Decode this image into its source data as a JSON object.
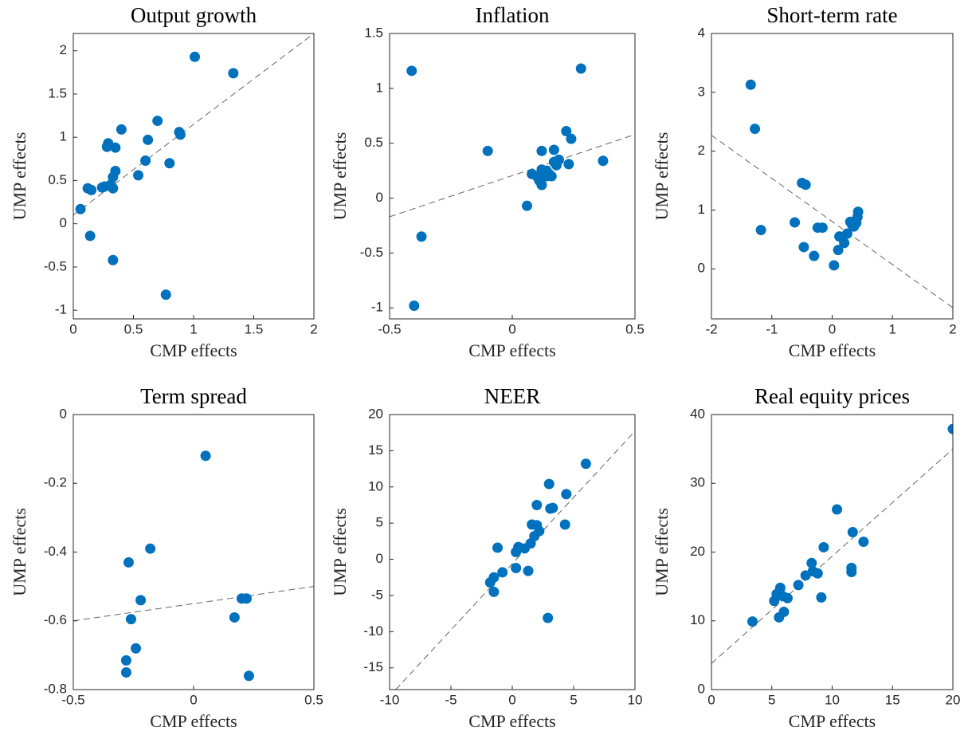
{
  "chart_data": [
    {
      "type": "scatter",
      "title": "Output growth",
      "xlabel": "CMP effects",
      "ylabel": "UMP effects",
      "color": "#0072bd",
      "x": [
        0.06,
        0.12,
        0.15,
        0.14,
        0.24,
        0.26,
        0.28,
        0.29,
        0.31,
        0.33,
        0.33,
        0.35,
        0.35,
        0.33,
        0.4,
        0.54,
        0.6,
        0.62,
        0.7,
        0.77,
        0.8,
        0.88,
        0.89,
        1.01,
        1.33
      ],
      "y": [
        0.17,
        0.41,
        0.39,
        -0.14,
        0.42,
        0.43,
        0.89,
        0.93,
        0.45,
        0.41,
        0.54,
        0.61,
        0.88,
        -0.42,
        1.09,
        0.56,
        0.73,
        0.97,
        1.19,
        -0.82,
        0.7,
        1.06,
        1.03,
        1.93,
        1.74
      ],
      "fit": {
        "x": [
          0,
          2
        ],
        "y": [
          0.1,
          2.2
        ]
      },
      "xlim": [
        0,
        2
      ],
      "xticks": [
        0,
        0.5,
        1,
        1.5,
        2
      ],
      "ylim": [
        -1.1,
        2.2
      ],
      "yticks": [
        -1,
        -0.5,
        0,
        0.5,
        1,
        1.5,
        2
      ]
    },
    {
      "type": "scatter",
      "title": "Inflation",
      "xlabel": "CMP effects",
      "ylabel": "UMP effects",
      "color": "#0072bd",
      "x": [
        -0.41,
        -0.4,
        -0.37,
        -0.1,
        0.06,
        0.08,
        0.1,
        0.11,
        0.12,
        0.12,
        0.12,
        0.14,
        0.14,
        0.15,
        0.16,
        0.17,
        0.17,
        0.18,
        0.19,
        0.22,
        0.23,
        0.24,
        0.28,
        0.37
      ],
      "y": [
        1.16,
        -0.98,
        -0.35,
        0.43,
        -0.07,
        0.22,
        0.2,
        0.16,
        0.26,
        0.12,
        0.43,
        0.2,
        0.25,
        0.22,
        0.2,
        0.33,
        0.44,
        0.3,
        0.35,
        0.61,
        0.31,
        0.54,
        1.18,
        0.34
      ],
      "fit": {
        "x": [
          -0.5,
          0.5
        ],
        "y": [
          -0.17,
          0.58
        ]
      },
      "xlim": [
        -0.5,
        0.5
      ],
      "xticks": [
        -0.5,
        0,
        0.5
      ],
      "ylim": [
        -1.1,
        1.5
      ],
      "yticks": [
        -1,
        -0.5,
        0,
        0.5,
        1,
        1.5
      ]
    },
    {
      "type": "scatter",
      "title": "Short-term rate",
      "xlabel": "CMP effects",
      "ylabel": "UMP effects",
      "color": "#0072bd",
      "x": [
        -1.35,
        -1.28,
        -1.18,
        -0.62,
        -0.5,
        -0.47,
        -0.44,
        -0.3,
        -0.24,
        -0.16,
        0.03,
        0.1,
        0.12,
        0.2,
        0.25,
        0.3,
        0.33,
        0.36,
        0.4,
        0.42,
        0.43
      ],
      "y": [
        3.13,
        2.38,
        0.66,
        0.79,
        1.46,
        0.37,
        1.43,
        0.22,
        0.7,
        0.7,
        0.06,
        0.32,
        0.55,
        0.44,
        0.6,
        0.8,
        0.75,
        0.72,
        0.78,
        0.88,
        0.97
      ],
      "fit": {
        "x": [
          -2,
          2
        ],
        "y": [
          2.27,
          -0.66
        ]
      },
      "xlim": [
        -2,
        2
      ],
      "xticks": [
        -2,
        -1,
        0,
        1,
        2
      ],
      "ylim": [
        -0.85,
        4
      ],
      "yticks": [
        0,
        1,
        2,
        3,
        4
      ]
    },
    {
      "type": "scatter",
      "title": "Term spread",
      "xlabel": "CMP effects",
      "ylabel": "UMP effects",
      "color": "#0072bd",
      "x": [
        -0.28,
        -0.28,
        -0.27,
        -0.26,
        -0.24,
        -0.22,
        -0.18,
        0.05,
        0.17,
        0.2,
        0.22,
        0.23
      ],
      "y": [
        -0.715,
        -0.75,
        -0.43,
        -0.595,
        -0.68,
        -0.54,
        -0.39,
        -0.12,
        -0.59,
        -0.535,
        -0.535,
        -0.76
      ],
      "fit": {
        "x": [
          -0.5,
          0.5
        ],
        "y": [
          -0.6,
          -0.5
        ]
      },
      "xlim": [
        -0.5,
        0.5
      ],
      "xticks": [
        -0.5,
        0,
        0.5
      ],
      "ylim": [
        -0.8,
        0
      ],
      "yticks": [
        -0.8,
        -0.6,
        -0.4,
        -0.2,
        0
      ]
    },
    {
      "type": "scatter",
      "title": "NEER",
      "xlabel": "CMP effects",
      "ylabel": "UMP effects",
      "color": "#0072bd",
      "x": [
        -1.8,
        -1.5,
        -1.5,
        -1.2,
        -0.8,
        0.3,
        0.3,
        0.5,
        1,
        1.3,
        1.5,
        1.6,
        1.8,
        2,
        2,
        2.2,
        2.9,
        3,
        3.1,
        3.3,
        4.3,
        4.4,
        6
      ],
      "y": [
        -3.2,
        -2.5,
        -4.5,
        1.6,
        -1.8,
        -1.2,
        1,
        1.7,
        1.5,
        -1.6,
        2.2,
        4.8,
        3.2,
        4.7,
        7.5,
        3.9,
        -8.1,
        10.4,
        7,
        7.1,
        4.8,
        9,
        13.2
      ],
      "fit": {
        "x": [
          -9.5,
          10
        ],
        "y": [
          -18,
          17.7
        ]
      },
      "xlim": [
        -10,
        10
      ],
      "xticks": [
        -10,
        -5,
        0,
        5,
        10
      ],
      "ylim": [
        -18,
        20
      ],
      "yticks": [
        -15,
        -10,
        -5,
        0,
        5,
        10,
        15,
        20
      ]
    },
    {
      "type": "scatter",
      "title": "Real equity prices",
      "xlabel": "CMP effects",
      "ylabel": "UMP effects",
      "color": "#0072bd",
      "x": [
        3.4,
        5.2,
        5.4,
        5.6,
        5.7,
        5.9,
        6,
        6.3,
        7.2,
        7.8,
        8.3,
        8.4,
        8.8,
        9.1,
        9.3,
        10.4,
        11.6,
        11.6,
        11.7,
        12.6,
        20
      ],
      "y": [
        9.9,
        12.9,
        13.9,
        10.5,
        14.8,
        13.6,
        11.3,
        13.3,
        15.2,
        16.6,
        18.4,
        17.2,
        16.9,
        13.4,
        20.7,
        26.2,
        17.1,
        17.7,
        22.9,
        21.5,
        37.9
      ],
      "fit": {
        "x": [
          0,
          20
        ],
        "y": [
          3.8,
          35
        ]
      },
      "xlim": [
        0,
        20
      ],
      "xticks": [
        0,
        5,
        10,
        15,
        20
      ],
      "ylim": [
        0,
        40
      ],
      "yticks": [
        0,
        10,
        20,
        30,
        40
      ]
    }
  ]
}
